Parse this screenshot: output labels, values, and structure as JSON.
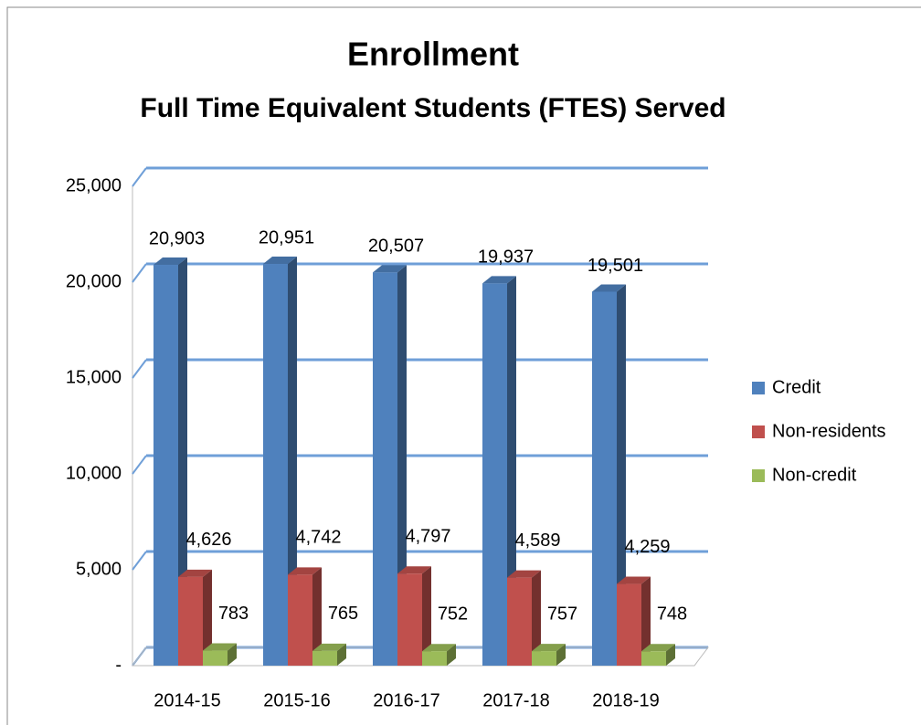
{
  "chart_data": {
    "type": "bar3d",
    "title": "Enrollment",
    "subtitle": "Full Time Equivalent Students (FTES) Served",
    "categories": [
      "2014-15",
      "2015-16",
      "2016-17",
      "2017-18",
      "2018-19"
    ],
    "series": [
      {
        "name": "Credit",
        "color": "#4f81bd",
        "values": [
          20903,
          20951,
          20507,
          19937,
          19501
        ],
        "value_labels": [
          "20,903",
          "20,951",
          "20,507",
          "19,937",
          "19,501"
        ]
      },
      {
        "name": "Non-residents",
        "color": "#c0504d",
        "values": [
          4626,
          4742,
          4797,
          4589,
          4259
        ],
        "value_labels": [
          "4,626",
          "4,742",
          "4,797",
          "4,589",
          "4,259"
        ]
      },
      {
        "name": "Non-credit",
        "color": "#9bbb59",
        "values": [
          783,
          765,
          752,
          757,
          748
        ]
      }
    ],
    "ylim": [
      0,
      25000
    ],
    "yticks": [
      {
        "value": 0,
        "label": "-"
      },
      {
        "value": 5000,
        "label": "5,000"
      },
      {
        "value": 10000,
        "label": "10,000"
      },
      {
        "value": 15000,
        "label": "15,000"
      },
      {
        "value": 20000,
        "label": "20,000"
      },
      {
        "value": 25000,
        "label": "25,000"
      }
    ],
    "grid": true,
    "legend": "right"
  }
}
